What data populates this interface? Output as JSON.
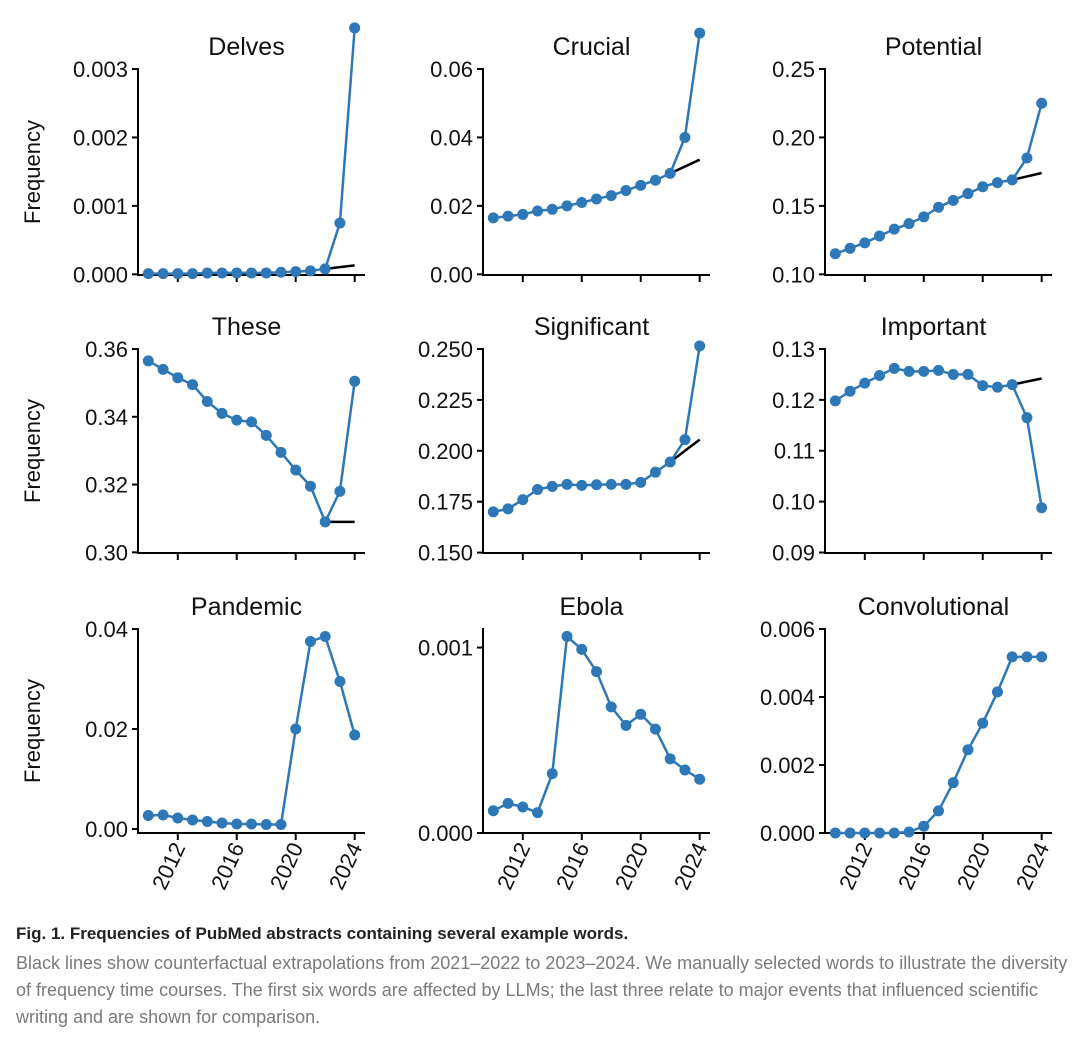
{
  "chart_data": [
    {
      "type": "line",
      "title": "Delves",
      "ylabel": "Frequency",
      "x": [
        2010,
        2011,
        2012,
        2013,
        2014,
        2015,
        2016,
        2017,
        2018,
        2019,
        2020,
        2021,
        2022,
        2023,
        2024
      ],
      "values": [
        1e-05,
        1e-05,
        1e-05,
        1e-05,
        2e-05,
        2e-05,
        2e-05,
        2e-05,
        2e-05,
        3e-05,
        4e-05,
        5e-05,
        8e-05,
        0.00075,
        0.0036
      ],
      "counterfactual": {
        "x": [
          2022,
          2024
        ],
        "values": [
          8e-05,
          0.00013
        ]
      },
      "ylim": [
        -1e-05,
        0.003
      ],
      "yticks": [
        0,
        0.001,
        0.002,
        0.003
      ],
      "ytick_labels": [
        "0.000",
        "0.001",
        "0.002",
        "0.003"
      ]
    },
    {
      "type": "line",
      "title": "Crucial",
      "ylabel": "",
      "x": [
        2010,
        2011,
        2012,
        2013,
        2014,
        2015,
        2016,
        2017,
        2018,
        2019,
        2020,
        2021,
        2022,
        2023,
        2024
      ],
      "values": [
        0.0165,
        0.017,
        0.0175,
        0.0185,
        0.019,
        0.02,
        0.021,
        0.022,
        0.023,
        0.0245,
        0.026,
        0.0275,
        0.0295,
        0.04,
        0.0705
      ],
      "counterfactual": {
        "x": [
          2022,
          2024
        ],
        "values": [
          0.0295,
          0.0335
        ]
      },
      "ylim": [
        -0.0002,
        0.06
      ],
      "yticks": [
        0,
        0.02,
        0.04,
        0.06
      ],
      "ytick_labels": [
        "0.00",
        "0.02",
        "0.04",
        "0.06"
      ]
    },
    {
      "type": "line",
      "title": "Potential",
      "ylabel": "",
      "x": [
        2010,
        2011,
        2012,
        2013,
        2014,
        2015,
        2016,
        2017,
        2018,
        2019,
        2020,
        2021,
        2022,
        2023,
        2024
      ],
      "values": [
        0.115,
        0.119,
        0.123,
        0.128,
        0.133,
        0.137,
        0.142,
        0.149,
        0.154,
        0.159,
        0.164,
        0.167,
        0.169,
        0.185,
        0.225
      ],
      "counterfactual": {
        "x": [
          2022,
          2024
        ],
        "values": [
          0.169,
          0.174
        ]
      },
      "ylim": [
        0.0995,
        0.25
      ],
      "yticks": [
        0.1,
        0.15,
        0.2,
        0.25
      ],
      "ytick_labels": [
        "0.10",
        "0.15",
        "0.20",
        "0.25"
      ]
    },
    {
      "type": "line",
      "title": "These",
      "ylabel": "Frequency",
      "x": [
        2010,
        2011,
        2012,
        2013,
        2014,
        2015,
        2016,
        2017,
        2018,
        2019,
        2020,
        2021,
        2022,
        2023,
        2024
      ],
      "values": [
        0.3565,
        0.354,
        0.3515,
        0.3495,
        0.3445,
        0.341,
        0.339,
        0.3385,
        0.3345,
        0.3295,
        0.3243,
        0.3195,
        0.309,
        0.318,
        0.3505
      ],
      "counterfactual": {
        "x": [
          2022,
          2024
        ],
        "values": [
          0.309,
          0.309
        ]
      },
      "ylim": [
        0.2998,
        0.36
      ],
      "yticks": [
        0.3,
        0.32,
        0.34,
        0.36
      ],
      "ytick_labels": [
        "0.30",
        "0.32",
        "0.34",
        "0.36"
      ]
    },
    {
      "type": "line",
      "title": "Significant",
      "ylabel": "",
      "x": [
        2010,
        2011,
        2012,
        2013,
        2014,
        2015,
        2016,
        2017,
        2018,
        2019,
        2020,
        2021,
        2022,
        2023,
        2024
      ],
      "values": [
        0.17,
        0.1715,
        0.176,
        0.181,
        0.1825,
        0.1835,
        0.183,
        0.1833,
        0.1835,
        0.1835,
        0.1845,
        0.1895,
        0.1945,
        0.2055,
        0.2515
      ],
      "counterfactual": {
        "x": [
          2022,
          2024
        ],
        "values": [
          0.1945,
          0.2055
        ]
      },
      "ylim": [
        0.1498,
        0.25
      ],
      "yticks": [
        0.15,
        0.175,
        0.2,
        0.225,
        0.25
      ],
      "ytick_labels": [
        "0.150",
        "0.175",
        "0.200",
        "0.225",
        "0.250"
      ]
    },
    {
      "type": "line",
      "title": "Important",
      "ylabel": "",
      "x": [
        2010,
        2011,
        2012,
        2013,
        2014,
        2015,
        2016,
        2017,
        2018,
        2019,
        2020,
        2021,
        2022,
        2023,
        2024
      ],
      "values": [
        0.1198,
        0.1217,
        0.1233,
        0.1248,
        0.1262,
        0.1256,
        0.1256,
        0.1258,
        0.125,
        0.125,
        0.1228,
        0.1225,
        0.123,
        0.1165,
        0.0988
      ],
      "counterfactual": {
        "x": [
          2022,
          2024
        ],
        "values": [
          0.123,
          0.1242
        ]
      },
      "ylim": [
        0.0899,
        0.13
      ],
      "yticks": [
        0.09,
        0.1,
        0.11,
        0.12,
        0.13
      ],
      "ytick_labels": [
        "0.09",
        "0.10",
        "0.11",
        "0.12",
        "0.13"
      ]
    },
    {
      "type": "line",
      "title": "Pandemic",
      "ylabel": "Frequency",
      "x": [
        2010,
        2011,
        2012,
        2013,
        2014,
        2015,
        2016,
        2017,
        2018,
        2019,
        2020,
        2021,
        2022,
        2023,
        2024
      ],
      "values": [
        0.0027,
        0.0028,
        0.0022,
        0.0018,
        0.0015,
        0.0012,
        0.001,
        0.001,
        0.0009,
        0.0009,
        0.02,
        0.0375,
        0.0385,
        0.0295,
        0.0188
      ],
      "ylim": [
        -0.0008,
        0.04
      ],
      "yticks": [
        0,
        0.02,
        0.04
      ],
      "ytick_labels": [
        "0.00",
        "0.02",
        "0.04"
      ]
    },
    {
      "type": "line",
      "title": "Ebola",
      "ylabel": "",
      "x": [
        2010,
        2011,
        2012,
        2013,
        2014,
        2015,
        2016,
        2017,
        2018,
        2019,
        2020,
        2021,
        2022,
        2023,
        2024
      ],
      "values": [
        0.00012,
        0.00016,
        0.00014,
        0.00011,
        0.00032,
        0.00106,
        0.00099,
        0.00087,
        0.00068,
        0.00058,
        0.00064,
        0.00056,
        0.0004,
        0.00034,
        0.00029
      ],
      "ylim": [
        0,
        0.0011
      ],
      "yticks": [
        0,
        0.001
      ],
      "ytick_labels": [
        "0.000",
        "0.001"
      ]
    },
    {
      "type": "line",
      "title": "Convolutional",
      "ylabel": "",
      "x": [
        2010,
        2011,
        2012,
        2013,
        2014,
        2015,
        2016,
        2017,
        2018,
        2019,
        2020,
        2021,
        2022,
        2023,
        2024
      ],
      "values": [
        0,
        0,
        0,
        0,
        0,
        3e-05,
        0.0002,
        0.00065,
        0.00148,
        0.00245,
        0.00323,
        0.00415,
        0.00518,
        0.00518,
        0.00518
      ],
      "ylim": [
        0,
        0.006
      ],
      "yticks": [
        0,
        0.002,
        0.004,
        0.006
      ],
      "ytick_labels": [
        "0.000",
        "0.002",
        "0.004",
        "0.006"
      ]
    }
  ],
  "xticks": [
    2012,
    2016,
    2020,
    2024
  ],
  "xtick_labels": [
    "2012",
    "2016",
    "2020",
    "2024"
  ],
  "xlim": [
    2009.3,
    2024.7
  ],
  "colors": {
    "series": "#2e78b7",
    "counterfactual": "#000000",
    "axis": "#000000"
  },
  "caption": {
    "title": "Fig. 1. Frequencies of PubMed abstracts containing several example words.",
    "body": "Black lines show counterfactual extrapolations from 2021–2022 to 2023–2024. We manually selected words to illustrate the diversity of frequency time courses. The first six words are affected by LLMs; the last three relate to major events that influenced scientific writing and are shown for comparison."
  }
}
